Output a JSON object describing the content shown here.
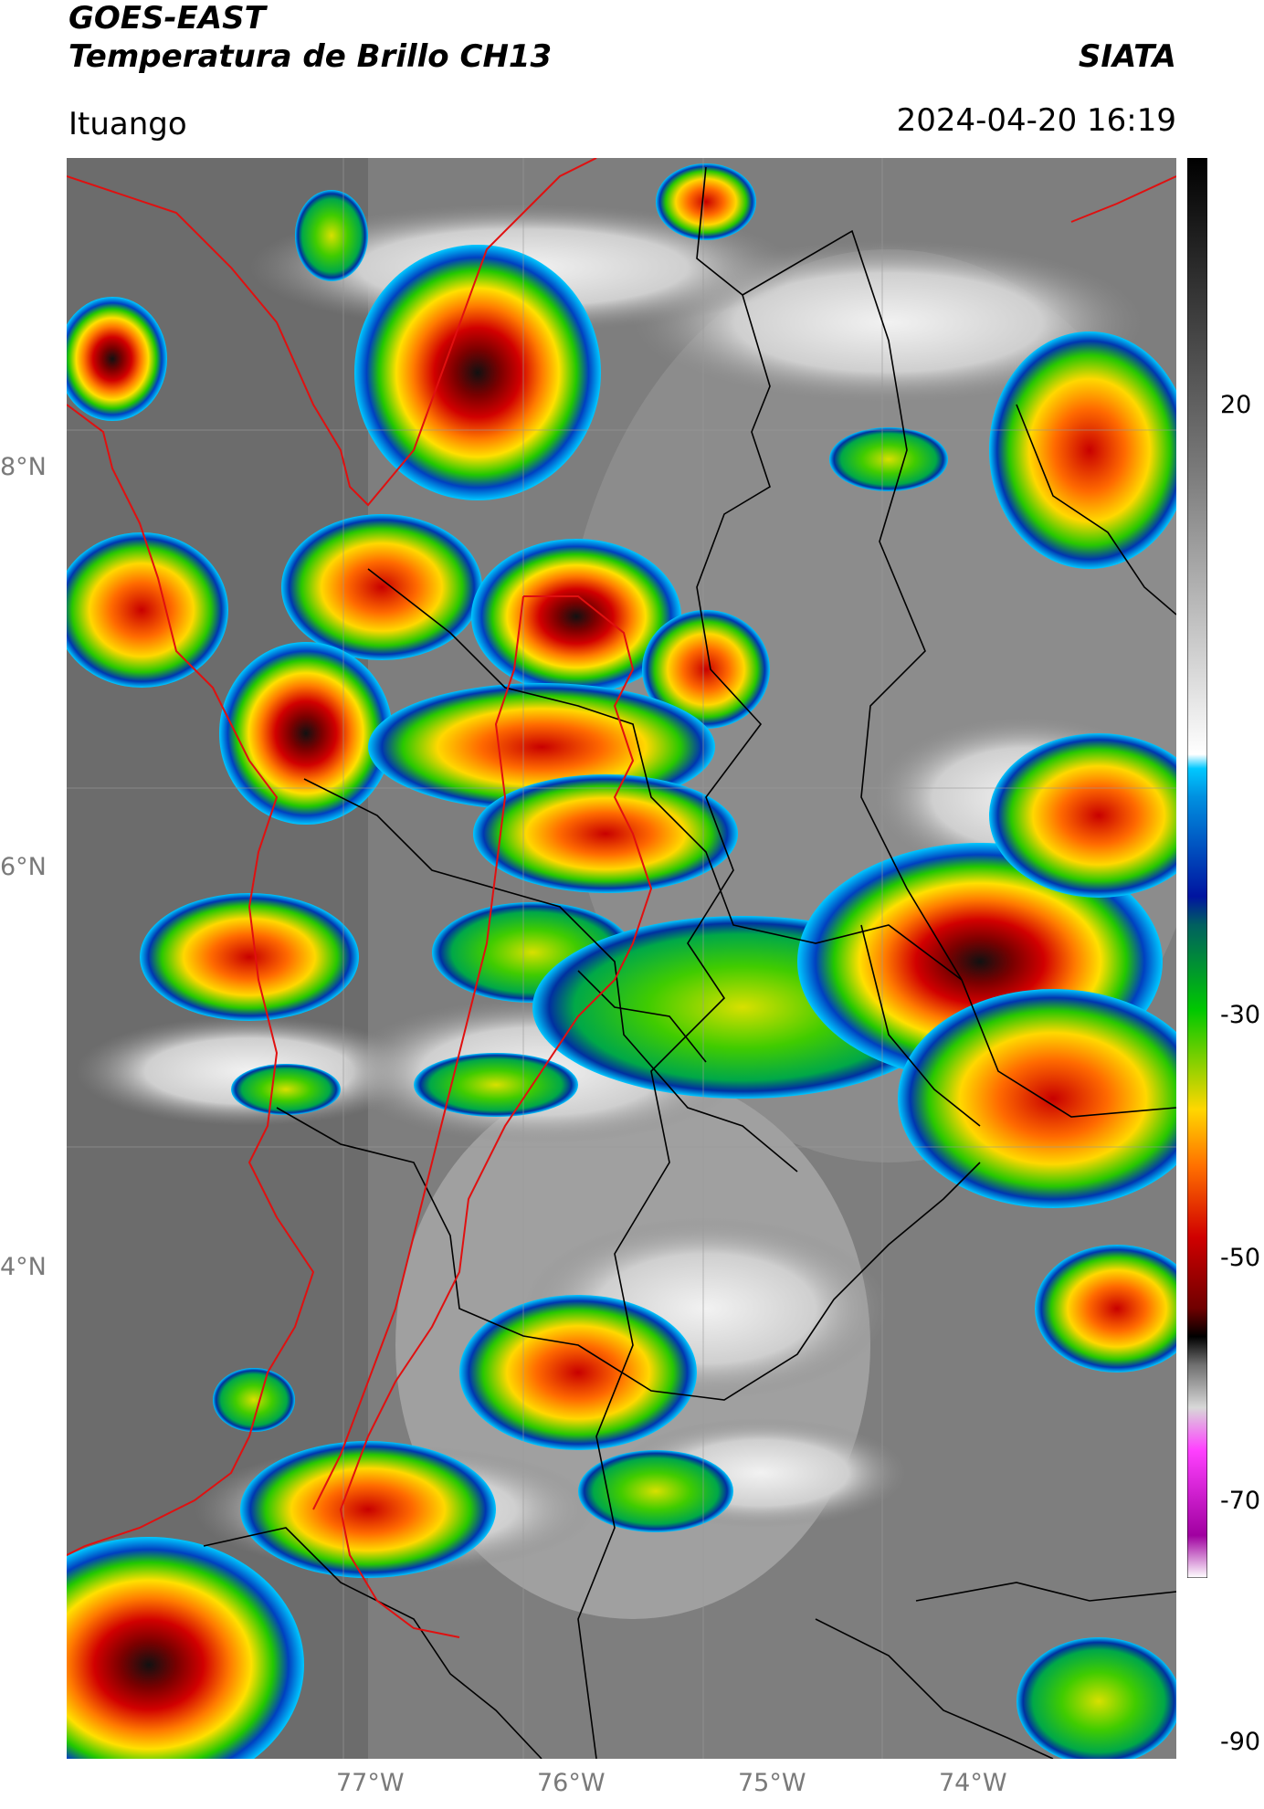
{
  "header": {
    "satellite": "GOES-EAST",
    "product": "Temperatura de Brillo CH13",
    "brand": "SIATA",
    "location": "Ituango",
    "timestamp": "2024-04-20 16:19"
  },
  "map": {
    "lat_labels": [
      "8°N",
      "6°N",
      "4°N"
    ],
    "lon_labels": [
      "77°W",
      "76°W",
      "75°W",
      "74°W"
    ],
    "background": "grayscale brightness temperature",
    "border_colors": {
      "region": "#e01010",
      "municipal": "#000000"
    }
  },
  "colorbar": {
    "ticks": [
      "20",
      "-30",
      "-50",
      "-70",
      "-90"
    ],
    "colors": [
      "#ffffff",
      "#d400d4",
      "#b9b9b9",
      "#000000",
      "#c80000",
      "#ff7000",
      "#ffd700",
      "#00c800",
      "#0014a0",
      "#00c8ff",
      "#bebebe",
      "#000000"
    ]
  }
}
